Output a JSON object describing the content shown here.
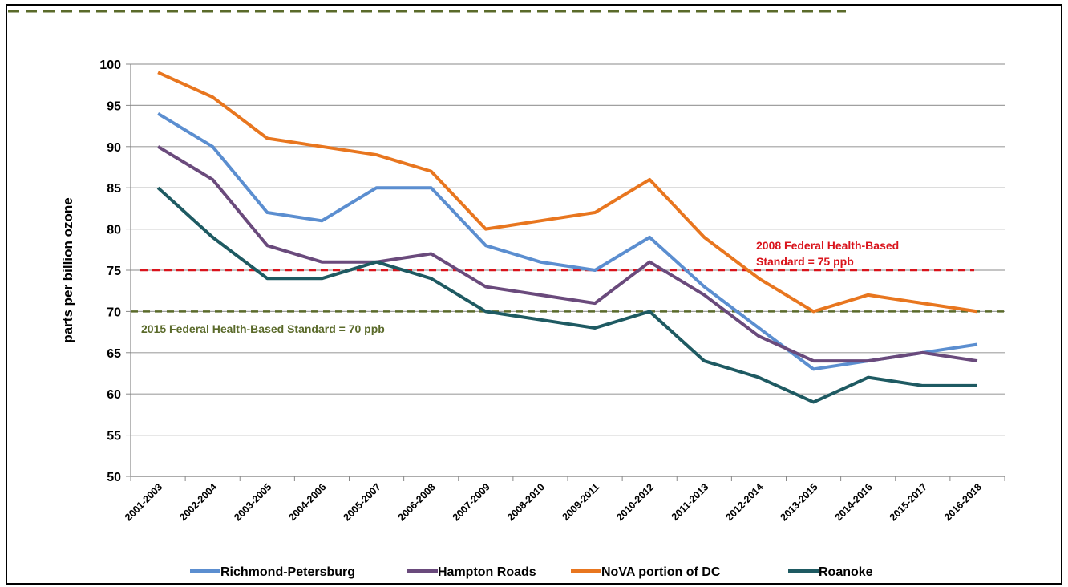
{
  "chart_data": {
    "type": "line",
    "y_label": "parts per billion ozone",
    "categories": [
      "2001-2003",
      "2002-2004",
      "2003-2005",
      "2004-2006",
      "2005-2007",
      "2006-2008",
      "2007-2009",
      "2008-2010",
      "2009-2011",
      "2010-2012",
      "2011-2013",
      "2012-2014",
      "2013-2015",
      "2014-2016",
      "2015-2017",
      "2016-2018"
    ],
    "series": [
      {
        "name": "Richmond-Petersburg",
        "color": "#5b8ed0",
        "values": [
          94,
          90,
          82,
          81,
          85,
          85,
          78,
          76,
          75,
          79,
          73,
          68,
          63,
          64,
          65,
          66
        ]
      },
      {
        "name": "Hampton Roads",
        "color": "#6a4a7c",
        "values": [
          90,
          86,
          78,
          76,
          76,
          77,
          73,
          72,
          71,
          76,
          72,
          67,
          64,
          64,
          65,
          64
        ]
      },
      {
        "name": "NoVA portion of DC",
        "color": "#e8761f",
        "values": [
          99,
          96,
          91,
          90,
          89,
          87,
          80,
          81,
          82,
          86,
          79,
          74,
          70,
          72,
          71,
          70
        ]
      },
      {
        "name": "Roanoke",
        "color": "#1e5a62",
        "values": [
          85,
          79,
          74,
          74,
          76,
          74,
          70,
          69,
          68,
          70,
          64,
          62,
          59,
          62,
          61,
          61
        ]
      }
    ],
    "reference_lines": [
      {
        "value": 75,
        "label": [
          "2008 Federal Health-Based",
          "Standard = 75 ppb"
        ],
        "color": "#d9141c"
      },
      {
        "value": 70,
        "label": [
          "2015 Federal Health-Based Standard = 70 ppb"
        ],
        "color": "#5a6a2a"
      }
    ],
    "ylim": [
      50,
      100
    ],
    "yticks": [
      50,
      55,
      60,
      65,
      70,
      75,
      80,
      85,
      90,
      95,
      100
    ],
    "grid": true,
    "legend": "bottom"
  }
}
